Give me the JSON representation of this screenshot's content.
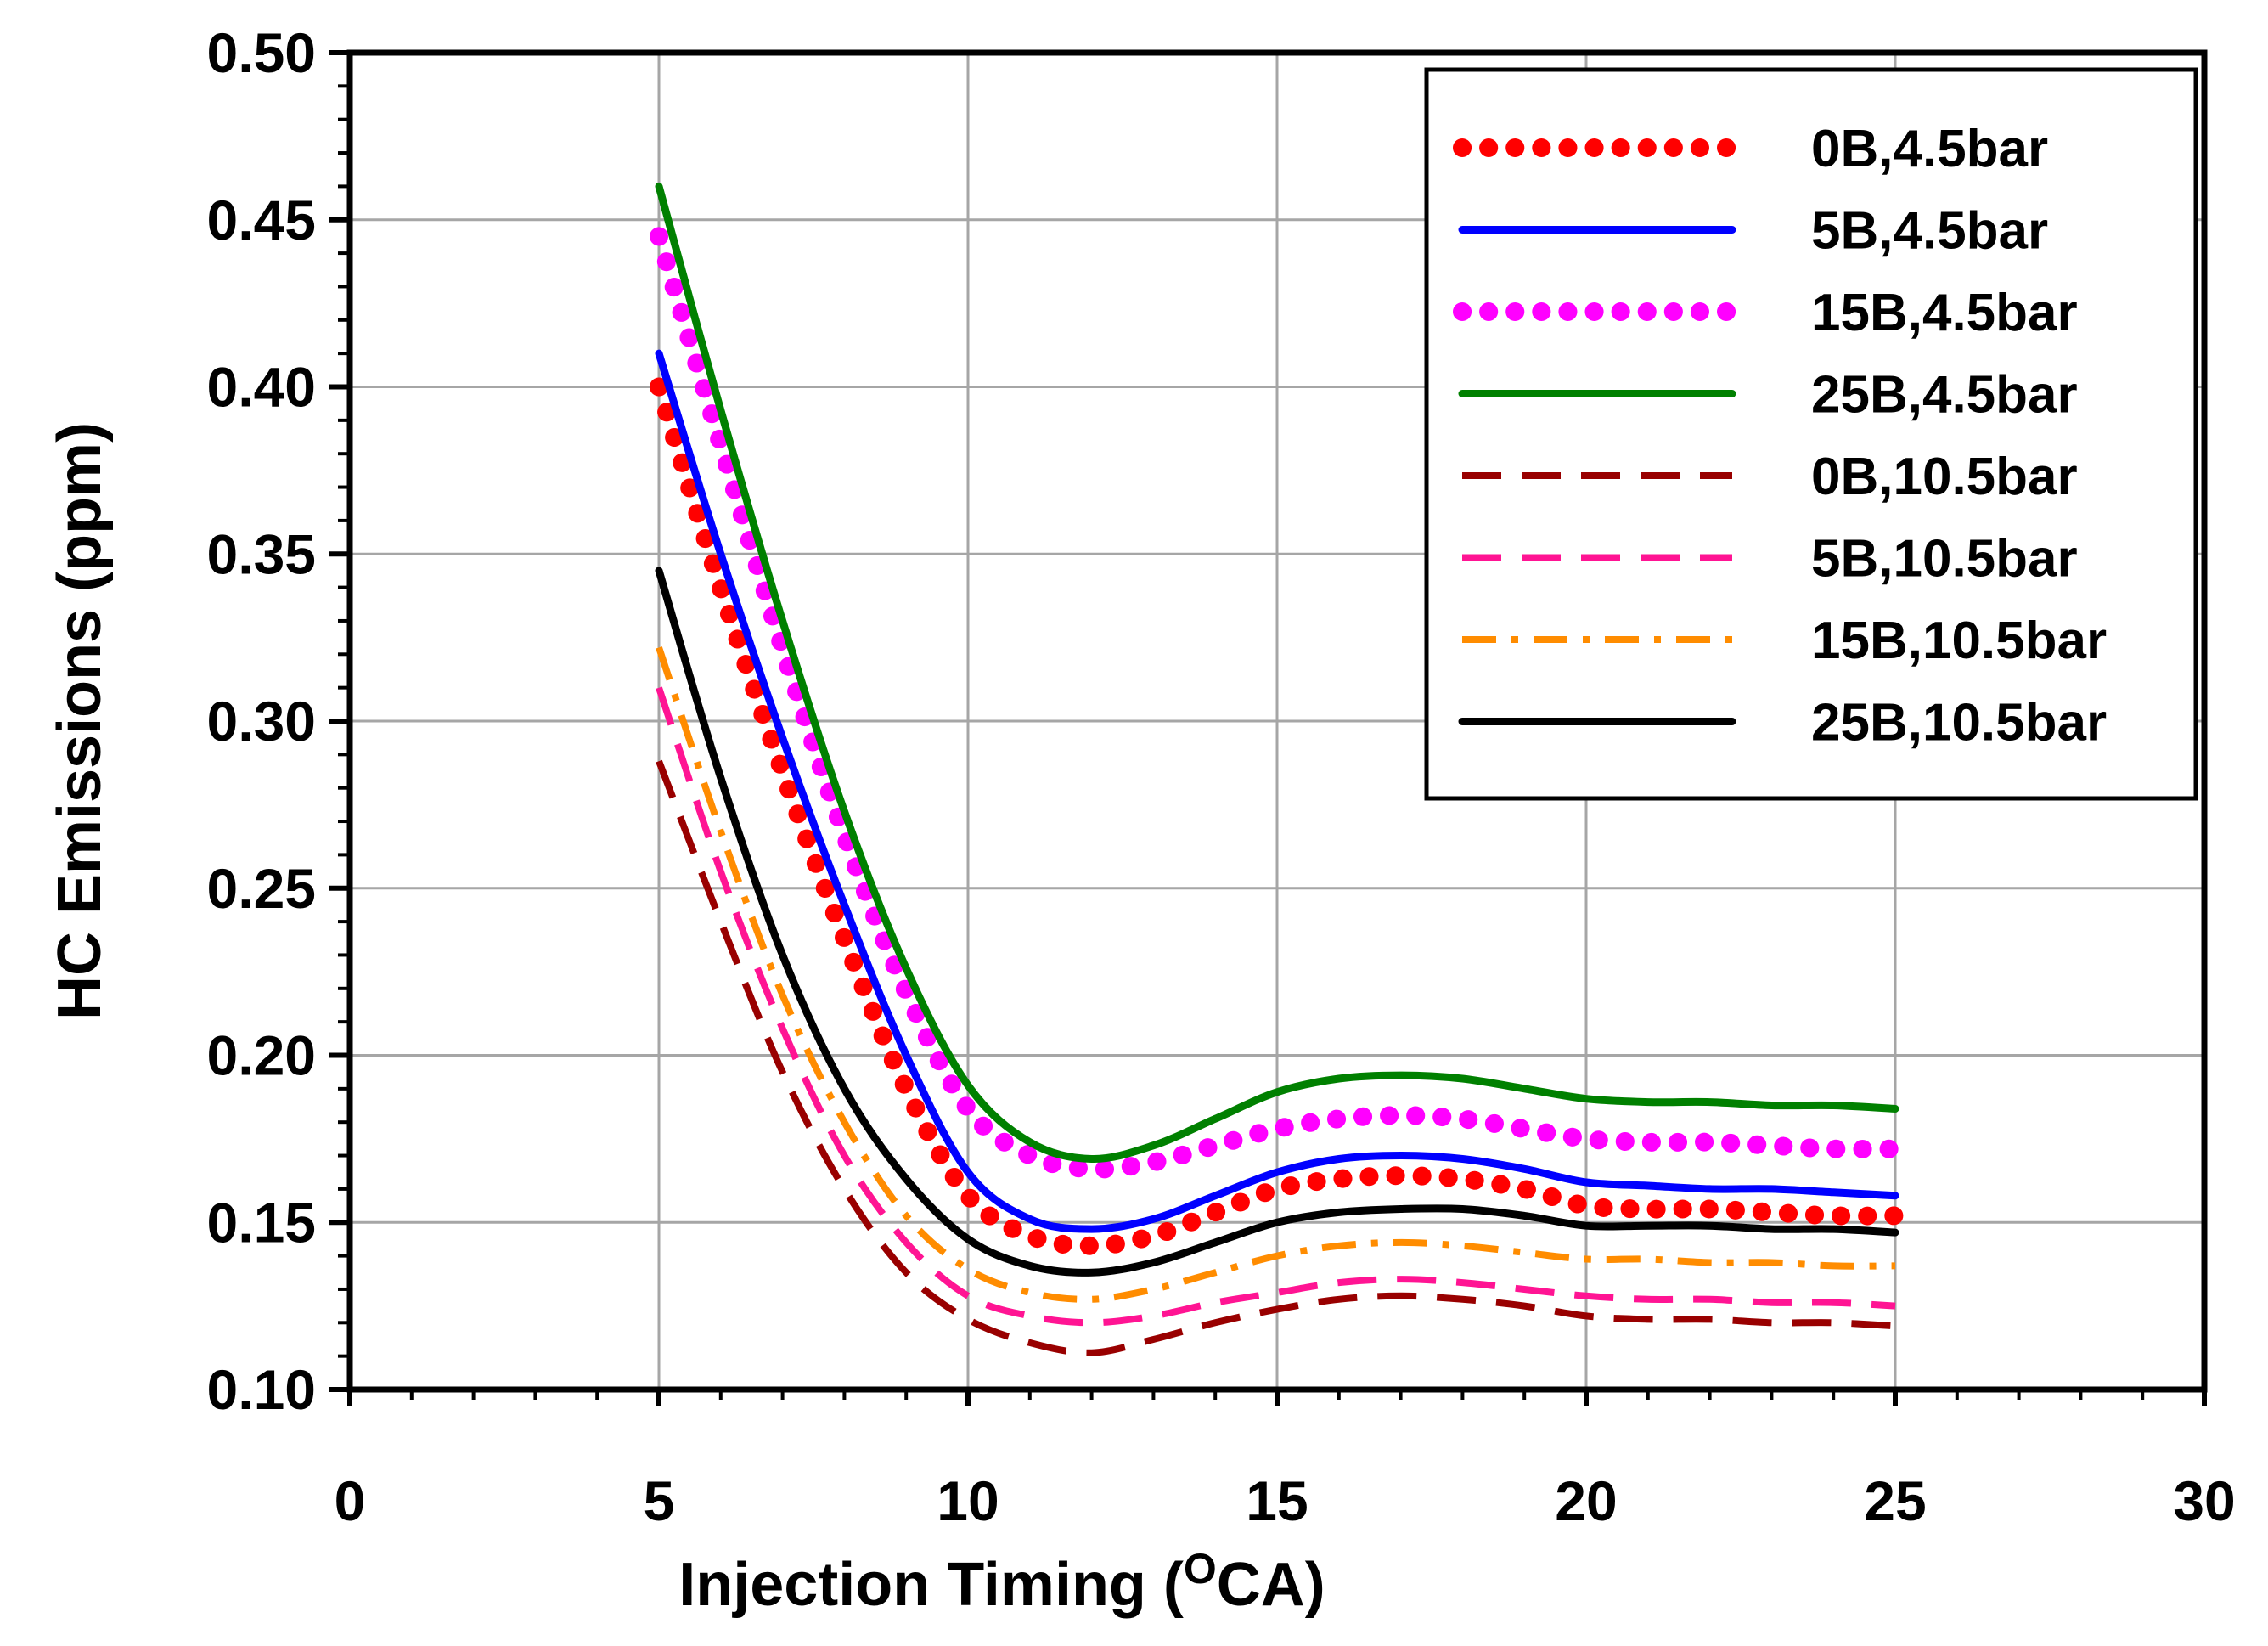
{
  "chart_data": {
    "type": "line",
    "title": "",
    "xlabel": "Injection Timing  (",
    "xlabel_sup": "O",
    "xlabel_unit": "CA)",
    "ylabel": "HC Emissions (ppm)",
    "xlim": [
      0,
      30
    ],
    "ylim": [
      0.1,
      0.5
    ],
    "x_ticks": [
      "0",
      "5",
      "10",
      "15",
      "20",
      "25",
      "30"
    ],
    "y_ticks": [
      "0.10",
      "0.15",
      "0.20",
      "0.25",
      "0.30",
      "0.35",
      "0.40",
      "0.45",
      "0.50"
    ],
    "grid": true,
    "legend_position": "top-right",
    "x": [
      5,
      6,
      7,
      8,
      9,
      10,
      11,
      12,
      13,
      14,
      15,
      16,
      17,
      18,
      19,
      20,
      21,
      22,
      23,
      24,
      25
    ],
    "series": [
      {
        "name": "0B,4.5bar",
        "color": "#ff0000",
        "style": "dotted",
        "values": [
          0.4,
          0.34,
          0.285,
          0.235,
          0.19,
          0.158,
          0.146,
          0.143,
          0.146,
          0.153,
          0.16,
          0.163,
          0.164,
          0.163,
          0.16,
          0.155,
          0.154,
          0.154,
          0.153,
          0.152,
          0.152
        ]
      },
      {
        "name": "5B,4.5bar",
        "color": "#0000ff",
        "style": "solid",
        "values": [
          0.41,
          0.35,
          0.295,
          0.245,
          0.2,
          0.165,
          0.151,
          0.148,
          0.151,
          0.158,
          0.165,
          0.169,
          0.17,
          0.169,
          0.166,
          0.162,
          0.161,
          0.16,
          0.16,
          0.159,
          0.158
        ]
      },
      {
        "name": "15B,4.5bar",
        "color": "#ff00ff",
        "style": "dotted",
        "values": [
          0.445,
          0.383,
          0.322,
          0.266,
          0.219,
          0.184,
          0.17,
          0.166,
          0.168,
          0.173,
          0.178,
          0.181,
          0.182,
          0.181,
          0.178,
          0.175,
          0.174,
          0.174,
          0.173,
          0.172,
          0.172
        ]
      },
      {
        "name": "25B,4.5bar",
        "color": "#008000",
        "style": "solid",
        "values": [
          0.46,
          0.393,
          0.33,
          0.273,
          0.226,
          0.191,
          0.174,
          0.169,
          0.173,
          0.181,
          0.189,
          0.193,
          0.194,
          0.193,
          0.19,
          0.187,
          0.186,
          0.186,
          0.185,
          0.185,
          0.184
        ]
      },
      {
        "name": "0B,10.5bar",
        "color": "#990000",
        "style": "dashed",
        "values": [
          0.288,
          0.24,
          0.195,
          0.16,
          0.135,
          0.121,
          0.114,
          0.111,
          0.115,
          0.12,
          0.124,
          0.127,
          0.128,
          0.127,
          0.125,
          0.122,
          0.121,
          0.121,
          0.12,
          0.12,
          0.119
        ]
      },
      {
        "name": "5B,10.5bar",
        "color": "#ff1493",
        "style": "dashed",
        "values": [
          0.31,
          0.255,
          0.208,
          0.17,
          0.144,
          0.128,
          0.122,
          0.12,
          0.122,
          0.126,
          0.129,
          0.132,
          0.133,
          0.132,
          0.13,
          0.128,
          0.127,
          0.127,
          0.126,
          0.126,
          0.125
        ]
      },
      {
        "name": "15B,10.5bar",
        "color": "#ff8c00",
        "style": "dashdot",
        "values": [
          0.322,
          0.267,
          0.218,
          0.18,
          0.152,
          0.136,
          0.129,
          0.127,
          0.13,
          0.135,
          0.14,
          0.143,
          0.144,
          0.143,
          0.141,
          0.139,
          0.139,
          0.138,
          0.138,
          0.137,
          0.137
        ]
      },
      {
        "name": "25B,10.5bar",
        "color": "#000000",
        "style": "solid",
        "values": [
          0.345,
          0.283,
          0.23,
          0.19,
          0.163,
          0.145,
          0.137,
          0.135,
          0.138,
          0.144,
          0.15,
          0.153,
          0.154,
          0.154,
          0.152,
          0.149,
          0.149,
          0.149,
          0.148,
          0.148,
          0.147
        ]
      }
    ]
  }
}
